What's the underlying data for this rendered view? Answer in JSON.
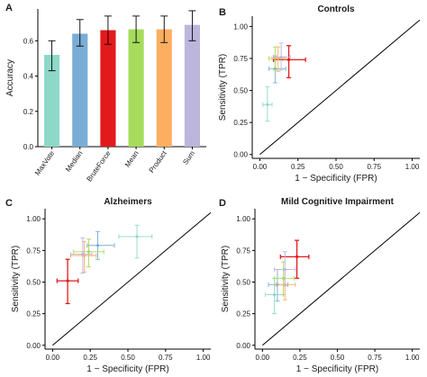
{
  "colors": {
    "MaxVote": "#8ed8c8",
    "Median": "#7aadd6",
    "BruteForce": "#e31a1c",
    "Mean": "#a6db5b",
    "Product": "#fdae61",
    "Sum": "#bcb6dd",
    "diagonal": "#000000",
    "axis": "#000000"
  },
  "chart_data": [
    {
      "id": "A",
      "panel_label": "A",
      "type": "bar",
      "title": "",
      "xlabel": "",
      "ylabel": "Accuracy",
      "ylim": [
        0,
        0.78
      ],
      "yticks": [
        0.0,
        0.2,
        0.4,
        0.6
      ],
      "yticklabels": [
        "0.0",
        "0.2",
        "0.4",
        "0.6"
      ],
      "categories": [
        "MaxVote",
        "Median",
        "BruteForce",
        "Mean",
        "Product",
        "Sum"
      ],
      "values": [
        0.52,
        0.64,
        0.66,
        0.665,
        0.665,
        0.69
      ],
      "err_low": [
        0.43,
        0.57,
        0.58,
        0.59,
        0.59,
        0.6
      ],
      "err_high": [
        0.6,
        0.72,
        0.74,
        0.74,
        0.74,
        0.77
      ],
      "grid": false
    },
    {
      "id": "B",
      "panel_label": "B",
      "type": "scatter",
      "title": "Controls",
      "xlabel": "1 − Specificity (FPR)",
      "ylabel": "Sensitivity (TPR)",
      "xlim": [
        -0.05,
        1.05
      ],
      "ylim": [
        -0.03,
        1.08
      ],
      "xticks": [
        0.0,
        0.25,
        0.5,
        0.75,
        1.0
      ],
      "xticklabels": [
        "0.00",
        "0.25",
        "0.50",
        "0.75",
        "1.00"
      ],
      "yticks": [
        0.0,
        0.25,
        0.5,
        0.75,
        1.0
      ],
      "yticklabels": [
        "0.00",
        "0.25",
        "0.50",
        "0.75",
        "1.00"
      ],
      "diagonal": true,
      "grid": false,
      "points": [
        {
          "method": "MaxVote",
          "x": 0.05,
          "y": 0.39,
          "xerr": [
            0.02,
            0.08
          ],
          "yerr": [
            0.26,
            0.53
          ]
        },
        {
          "method": "Median",
          "x": 0.1,
          "y": 0.67,
          "xerr": [
            0.06,
            0.17
          ],
          "yerr": [
            0.56,
            0.77
          ]
        },
        {
          "method": "BruteForce",
          "x": 0.19,
          "y": 0.74,
          "xerr": [
            0.09,
            0.3
          ],
          "yerr": [
            0.6,
            0.85
          ]
        },
        {
          "method": "Mean",
          "x": 0.1,
          "y": 0.75,
          "xerr": [
            0.06,
            0.16
          ],
          "yerr": [
            0.66,
            0.84
          ]
        },
        {
          "method": "Product",
          "x": 0.12,
          "y": 0.75,
          "xerr": [
            0.08,
            0.17
          ],
          "yerr": [
            0.65,
            0.84
          ]
        },
        {
          "method": "Sum",
          "x": 0.14,
          "y": 0.76,
          "xerr": [
            0.09,
            0.2
          ],
          "yerr": [
            0.66,
            0.87
          ]
        }
      ]
    },
    {
      "id": "C",
      "panel_label": "C",
      "type": "scatter",
      "title": "Alzheimers",
      "xlabel": "1 − Specificity (FPR)",
      "ylabel": "Sensitivity (TPR)",
      "xlim": [
        -0.05,
        1.05
      ],
      "ylim": [
        -0.03,
        1.08
      ],
      "xticks": [
        0.0,
        0.25,
        0.5,
        0.75,
        1.0
      ],
      "xticklabels": [
        "0.00",
        "0.25",
        "0.50",
        "0.75",
        "1.00"
      ],
      "yticks": [
        0.0,
        0.25,
        0.5,
        0.75,
        1.0
      ],
      "yticklabels": [
        "0.00",
        "0.25",
        "0.50",
        "0.75",
        "1.00"
      ],
      "diagonal": true,
      "grid": false,
      "points": [
        {
          "method": "MaxVote",
          "x": 0.56,
          "y": 0.86,
          "xerr": [
            0.44,
            0.66
          ],
          "yerr": [
            0.69,
            0.95
          ]
        },
        {
          "method": "Median",
          "x": 0.3,
          "y": 0.79,
          "xerr": [
            0.23,
            0.41
          ],
          "yerr": [
            0.68,
            0.9
          ]
        },
        {
          "method": "BruteForce",
          "x": 0.1,
          "y": 0.51,
          "xerr": [
            0.03,
            0.17
          ],
          "yerr": [
            0.33,
            0.68
          ]
        },
        {
          "method": "Mean",
          "x": 0.24,
          "y": 0.74,
          "xerr": [
            0.14,
            0.34
          ],
          "yerr": [
            0.62,
            0.84
          ]
        },
        {
          "method": "Product",
          "x": 0.21,
          "y": 0.71,
          "xerr": [
            0.12,
            0.29
          ],
          "yerr": [
            0.58,
            0.82
          ]
        },
        {
          "method": "Sum",
          "x": 0.2,
          "y": 0.72,
          "xerr": [
            0.12,
            0.26
          ],
          "yerr": [
            0.57,
            0.85
          ]
        }
      ]
    },
    {
      "id": "D",
      "panel_label": "D",
      "type": "scatter",
      "title": "Mild Cognitive Impairment",
      "xlabel": "1 − Specificity (FPR)",
      "ylabel": "Sensitivity (TPR)",
      "xlim": [
        -0.05,
        1.05
      ],
      "ylim": [
        -0.03,
        1.08
      ],
      "xticks": [
        0.0,
        0.25,
        0.5,
        0.75,
        1.0
      ],
      "xticklabels": [
        "0.00",
        "0.25",
        "0.50",
        "0.75",
        "1.00"
      ],
      "yticks": [
        0.0,
        0.25,
        0.5,
        0.75,
        1.0
      ],
      "yticklabels": [
        "0.00",
        "0.25",
        "0.50",
        "0.75",
        "1.00"
      ],
      "diagonal": true,
      "grid": false,
      "points": [
        {
          "method": "MaxVote",
          "x": 0.08,
          "y": 0.4,
          "xerr": [
            0.02,
            0.14
          ],
          "yerr": [
            0.25,
            0.53
          ]
        },
        {
          "method": "Median",
          "x": 0.1,
          "y": 0.48,
          "xerr": [
            0.04,
            0.17
          ],
          "yerr": [
            0.35,
            0.6
          ]
        },
        {
          "method": "BruteForce",
          "x": 0.23,
          "y": 0.7,
          "xerr": [
            0.12,
            0.31
          ],
          "yerr": [
            0.53,
            0.83
          ]
        },
        {
          "method": "Mean",
          "x": 0.14,
          "y": 0.53,
          "xerr": [
            0.08,
            0.21
          ],
          "yerr": [
            0.4,
            0.66
          ]
        },
        {
          "method": "Product",
          "x": 0.15,
          "y": 0.48,
          "xerr": [
            0.09,
            0.22
          ],
          "yerr": [
            0.36,
            0.6
          ]
        },
        {
          "method": "Sum",
          "x": 0.15,
          "y": 0.6,
          "xerr": [
            0.08,
            0.22
          ],
          "yerr": [
            0.47,
            0.74
          ]
        }
      ]
    }
  ]
}
